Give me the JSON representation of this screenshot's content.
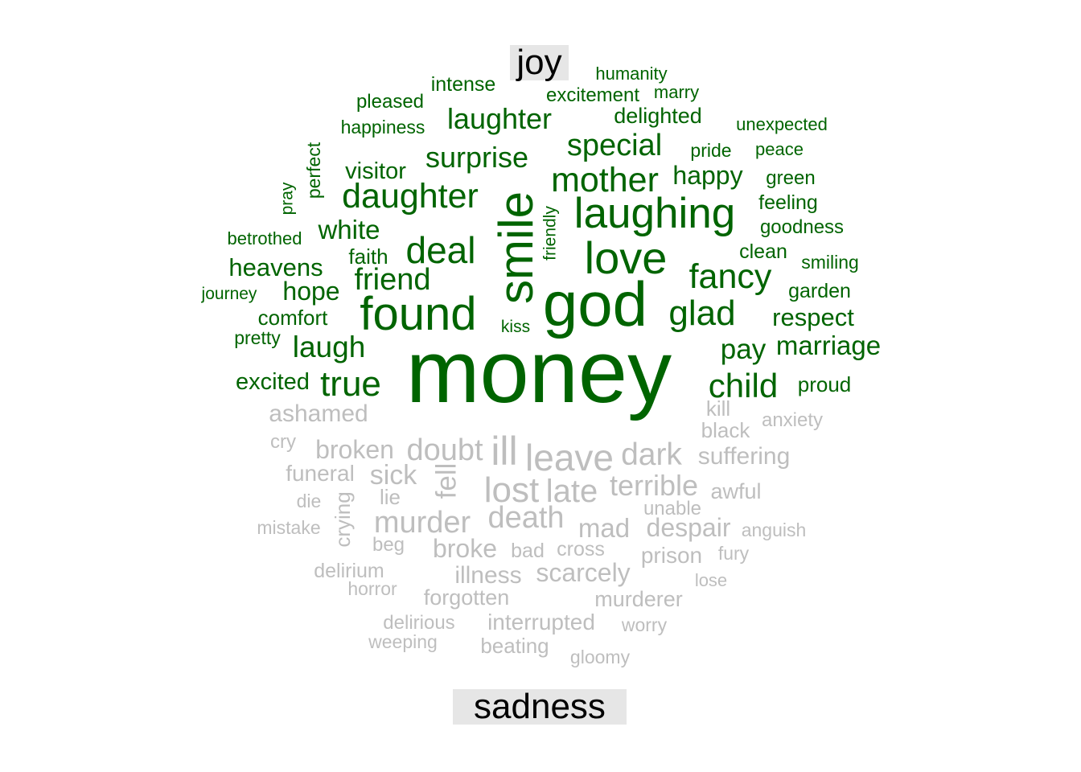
{
  "chart_data": {
    "type": "wordcloud",
    "categories": [
      "joy",
      "sadness"
    ],
    "colors": {
      "joy": "#006400",
      "sadness": "#bebebe"
    },
    "groups": [
      {
        "category": "joy",
        "color": "#006400",
        "words": [
          "money",
          "god",
          "smile",
          "found",
          "love",
          "laughing",
          "daughter",
          "deal",
          "mother",
          "fancy",
          "glad",
          "child",
          "surprise",
          "laughter",
          "special",
          "true",
          "friend",
          "laugh",
          "hope",
          "heavens",
          "white",
          "pay",
          "marriage",
          "respect",
          "happy",
          "visitor",
          "excited",
          "comfort",
          "delighted",
          "faith",
          "intense",
          "excitement",
          "pleased",
          "happiness",
          "humanity",
          "marry",
          "unexpected",
          "pride",
          "peace",
          "green",
          "feeling",
          "goodness",
          "clean",
          "smiling",
          "garden",
          "proud",
          "betrothed",
          "pretty",
          "journey",
          "kiss",
          "friendly",
          "perfect",
          "pray"
        ]
      },
      {
        "category": "sadness",
        "color": "#bebebe",
        "words": [
          "ill",
          "leave",
          "lost",
          "late",
          "dark",
          "doubt",
          "death",
          "murder",
          "terrible",
          "despair",
          "mad",
          "broken",
          "sick",
          "fell",
          "suffering",
          "broke",
          "scarcely",
          "illness",
          "prison",
          "murderer",
          "interrupted",
          "forgotten",
          "beating",
          "funeral",
          "anxiety",
          "black",
          "kill",
          "ashamed",
          "awful",
          "crying",
          "cross",
          "bad",
          "lie",
          "cry",
          "unable",
          "anguish",
          "fury",
          "lose",
          "mistake",
          "die",
          "beg",
          "delirium",
          "horror",
          "delirious",
          "weeping",
          "worry",
          "gloomy"
        ]
      }
    ]
  }
}
